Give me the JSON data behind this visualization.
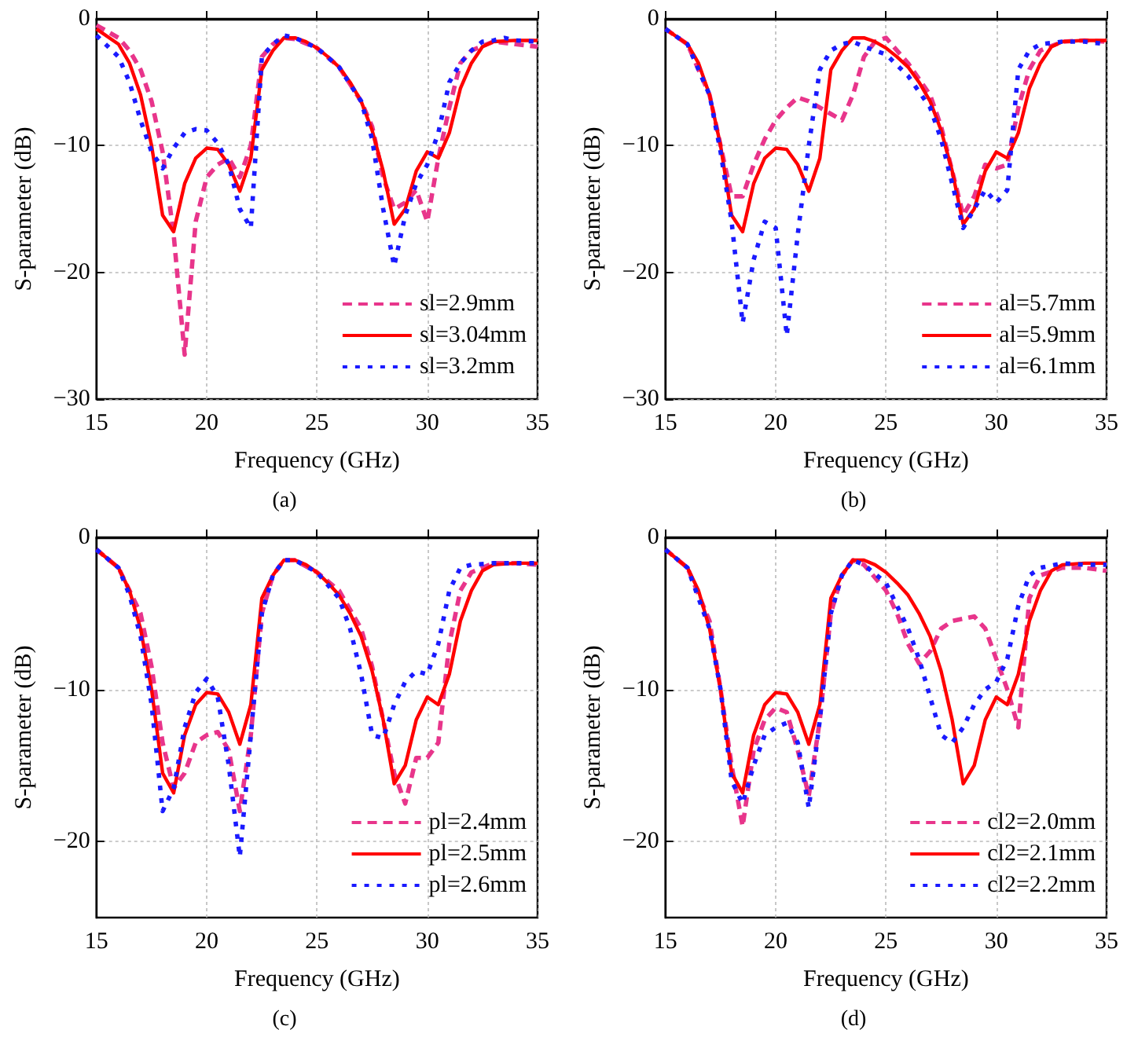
{
  "chart_data": [
    {
      "type": "line",
      "xlabel": "Frequency (GHz)",
      "ylabel": "S-parameter (dB)",
      "annotations": [
        "(a)"
      ],
      "xlim": [
        15,
        35
      ],
      "xticks": [
        15,
        20,
        25,
        30,
        35
      ],
      "ylim": [
        -30,
        0
      ],
      "yticks": [
        0,
        -10,
        -20,
        -30
      ],
      "grid": true,
      "legend": "bottom right",
      "marker": "none",
      "series": [
        {
          "name": "sl=2.9mm",
          "color": "#e8358b",
          "line_style": "dashed",
          "x": [
            15,
            16,
            16.5,
            17,
            17.5,
            18,
            18.5,
            19,
            19.5,
            20,
            20.5,
            21,
            21.5,
            22,
            22.5,
            23,
            23.5,
            24,
            25,
            26,
            27,
            27.5,
            28,
            28.5,
            29,
            29.5,
            30,
            30.5,
            31,
            31.5,
            32,
            33,
            34,
            35
          ],
          "values": [
            -0.5,
            -1.5,
            -2.5,
            -4,
            -6.5,
            -10.5,
            -17,
            -26.5,
            -16,
            -12.5,
            -11.5,
            -11,
            -12.5,
            -10,
            -3,
            -2,
            -1.5,
            -1.6,
            -2.3,
            -3.8,
            -6.5,
            -8.5,
            -12.5,
            -15,
            -14.5,
            -13.5,
            -16,
            -11,
            -7,
            -3.5,
            -2.5,
            -1.8,
            -2,
            -2.2
          ]
        },
        {
          "name": "sl=3.04mm",
          "color": "#ff0000",
          "line_style": "solid",
          "x": [
            15,
            16,
            16.5,
            17,
            17.5,
            18,
            18.5,
            19,
            19.5,
            20,
            20.5,
            21,
            21.5,
            22,
            22.5,
            23,
            23.5,
            24,
            24.5,
            25,
            25.5,
            26,
            26.5,
            27,
            27.5,
            28,
            28.5,
            29,
            29.5,
            30,
            30.5,
            31,
            31.5,
            32,
            32.5,
            33,
            34,
            35
          ],
          "values": [
            -0.8,
            -2,
            -3.5,
            -6,
            -10,
            -15.5,
            -16.8,
            -13,
            -11,
            -10.2,
            -10.3,
            -11.5,
            -13.6,
            -11,
            -4,
            -2.5,
            -1.5,
            -1.5,
            -1.8,
            -2.3,
            -3,
            -3.8,
            -5,
            -6.5,
            -8.8,
            -12,
            -16.2,
            -15,
            -12,
            -10.5,
            -11,
            -9,
            -5.5,
            -3.5,
            -2.2,
            -1.8,
            -1.7,
            -1.7
          ]
        },
        {
          "name": "sl=3.2mm",
          "color": "#1a1aff",
          "line_style": "dotted",
          "x": [
            15,
            16,
            16.5,
            17,
            17.5,
            18,
            18.5,
            19,
            19.5,
            20,
            20.5,
            21,
            21.5,
            22,
            22.5,
            23,
            23.5,
            24,
            25,
            26,
            27,
            27.5,
            28,
            28.5,
            29,
            29.5,
            30,
            30.5,
            31,
            31.5,
            32,
            32.5,
            33,
            33.5,
            34,
            35
          ],
          "values": [
            -1.3,
            -3,
            -5,
            -8,
            -10.5,
            -11.8,
            -10.2,
            -9,
            -8.7,
            -8.8,
            -9.8,
            -11.5,
            -15,
            -16.5,
            -3,
            -2,
            -1.3,
            -1.5,
            -2.3,
            -3.8,
            -6.5,
            -9.5,
            -15,
            -19.5,
            -15.5,
            -13,
            -11.5,
            -9,
            -5,
            -3.5,
            -2.5,
            -1.8,
            -1.7,
            -1.5,
            -1.7,
            -1.8
          ]
        }
      ]
    },
    {
      "type": "line",
      "xlabel": "Frequency (GHz)",
      "ylabel": "S-parameter (dB)",
      "annotations": [
        "(b)"
      ],
      "xlim": [
        15,
        35
      ],
      "xticks": [
        15,
        20,
        25,
        30,
        35
      ],
      "ylim": [
        -30,
        0
      ],
      "yticks": [
        0,
        -10,
        -20,
        -30
      ],
      "grid": true,
      "legend": "bottom right",
      "marker": "none",
      "series": [
        {
          "name": "al=5.7mm",
          "color": "#e8358b",
          "line_style": "dashed",
          "x": [
            15,
            16,
            17,
            17.5,
            18,
            18.5,
            19,
            19.5,
            20,
            20.5,
            21,
            21.5,
            22,
            22.5,
            23,
            23.5,
            24,
            24.5,
            25,
            25.5,
            26,
            27,
            27.5,
            28,
            28.5,
            29,
            29.5,
            30,
            30.5,
            31,
            31.5,
            32,
            33,
            34,
            35
          ],
          "values": [
            -0.8,
            -2,
            -6,
            -10,
            -14,
            -14,
            -11.5,
            -9.5,
            -8,
            -7,
            -6.2,
            -6.5,
            -7,
            -7.5,
            -8,
            -6,
            -3,
            -1.8,
            -1.5,
            -2.5,
            -3.5,
            -6,
            -8.5,
            -12,
            -15.5,
            -14,
            -11.5,
            -11.8,
            -11.5,
            -7,
            -4,
            -2.5,
            -1.8,
            -1.7,
            -1.8
          ]
        },
        {
          "name": "al=5.9mm",
          "color": "#ff0000",
          "line_style": "solid",
          "x": [
            15,
            16,
            16.5,
            17,
            17.5,
            18,
            18.5,
            19,
            19.5,
            20,
            20.5,
            21,
            21.5,
            22,
            22.5,
            23,
            23.5,
            24,
            24.5,
            25,
            25.5,
            26,
            26.5,
            27,
            27.5,
            28,
            28.5,
            29,
            29.5,
            30,
            30.5,
            31,
            31.5,
            32,
            32.5,
            33,
            34,
            35
          ],
          "values": [
            -0.8,
            -2,
            -3.5,
            -6,
            -10,
            -15.5,
            -16.8,
            -13,
            -11,
            -10.2,
            -10.3,
            -11.5,
            -13.6,
            -11,
            -4,
            -2.5,
            -1.5,
            -1.5,
            -1.8,
            -2.3,
            -3,
            -3.8,
            -5,
            -6.5,
            -8.8,
            -12,
            -16.2,
            -15,
            -12,
            -10.5,
            -11,
            -9,
            -5.5,
            -3.5,
            -2.2,
            -1.8,
            -1.7,
            -1.7
          ]
        },
        {
          "name": "al=6.1mm",
          "color": "#1a1aff",
          "line_style": "dotted",
          "x": [
            15,
            16,
            17,
            17.5,
            18,
            18.5,
            19,
            19.5,
            20,
            20.5,
            21,
            21.5,
            22,
            22.5,
            23,
            23.5,
            24,
            25,
            26,
            27,
            27.5,
            28,
            28.5,
            29,
            29.5,
            30,
            30.5,
            31,
            31.5,
            32,
            33,
            34,
            35
          ],
          "values": [
            -0.8,
            -2,
            -6,
            -10.5,
            -16,
            -24,
            -19,
            -16,
            -16.5,
            -25,
            -17,
            -10,
            -4,
            -2.5,
            -2,
            -1.8,
            -2.2,
            -2.8,
            -4.5,
            -7,
            -9.5,
            -13,
            -16.5,
            -15,
            -13.5,
            -14.5,
            -13.5,
            -4,
            -2.5,
            -2,
            -1.8,
            -1.8,
            -2
          ]
        }
      ]
    },
    {
      "type": "line",
      "xlabel": "Frequency (GHz)",
      "ylabel": "S-parameter (dB)",
      "annotations": [
        "(c)"
      ],
      "xlim": [
        15,
        35
      ],
      "xticks": [
        15,
        20,
        25,
        30,
        35
      ],
      "ylim": [
        -25,
        0
      ],
      "yticks": [
        0,
        -10,
        -20
      ],
      "grid": true,
      "legend": "bottom right",
      "marker": "none",
      "series": [
        {
          "name": "pl=2.4mm",
          "color": "#e8358b",
          "line_style": "dashed",
          "x": [
            15,
            16,
            17,
            17.5,
            18,
            18.5,
            19,
            19.5,
            20,
            20.5,
            21,
            21.5,
            22,
            22.5,
            23,
            23.5,
            24,
            25,
            26,
            27,
            27.5,
            28,
            28.5,
            29,
            29.5,
            30,
            30.5,
            31,
            31.5,
            32,
            33,
            34,
            35
          ],
          "values": [
            -0.8,
            -2,
            -5,
            -8.5,
            -13.5,
            -16.5,
            -15.5,
            -13.5,
            -13,
            -12.8,
            -14,
            -18,
            -13,
            -5,
            -2.5,
            -1.5,
            -1.5,
            -2.3,
            -3.5,
            -6,
            -8.5,
            -12,
            -15.5,
            -17.5,
            -14.5,
            -14.5,
            -13.5,
            -7,
            -3.5,
            -2.3,
            -1.7,
            -1.7,
            -1.8
          ]
        },
        {
          "name": "pl=2.5mm",
          "color": "#ff0000",
          "line_style": "solid",
          "x": [
            15,
            16,
            16.5,
            17,
            17.5,
            18,
            18.5,
            19,
            19.5,
            20,
            20.5,
            21,
            21.5,
            22,
            22.5,
            23,
            23.5,
            24,
            24.5,
            25,
            25.5,
            26,
            26.5,
            27,
            27.5,
            28,
            28.5,
            29,
            29.5,
            30,
            30.5,
            31,
            31.5,
            32,
            32.5,
            33,
            34,
            35
          ],
          "values": [
            -0.8,
            -2,
            -3.5,
            -6,
            -10,
            -15.5,
            -16.8,
            -13,
            -11,
            -10.2,
            -10.3,
            -11.5,
            -13.6,
            -11,
            -4,
            -2.5,
            -1.5,
            -1.5,
            -1.8,
            -2.3,
            -3,
            -3.8,
            -5,
            -6.5,
            -8.8,
            -12,
            -16.2,
            -15,
            -12,
            -10.5,
            -11,
            -9,
            -5.5,
            -3.5,
            -2.2,
            -1.8,
            -1.7,
            -1.7
          ]
        },
        {
          "name": "pl=2.6mm",
          "color": "#1a1aff",
          "line_style": "dotted",
          "x": [
            15,
            16,
            16.5,
            17,
            17.5,
            18,
            18.5,
            19,
            19.5,
            20,
            20.5,
            21,
            21.5,
            22,
            22.5,
            23,
            23.5,
            24,
            25,
            26,
            26.5,
            27,
            27.5,
            28,
            28.5,
            29,
            29.5,
            30,
            30.5,
            31,
            31.5,
            32,
            33,
            35
          ],
          "values": [
            -0.8,
            -2,
            -3.8,
            -6.5,
            -11,
            -18,
            -16.5,
            -12.5,
            -10.2,
            -9.3,
            -10.5,
            -15,
            -21,
            -13,
            -5,
            -2.5,
            -1.5,
            -1.5,
            -2.3,
            -4,
            -6,
            -9,
            -13,
            -13.2,
            -11,
            -9.5,
            -8.8,
            -9,
            -7,
            -3.5,
            -2,
            -1.8,
            -1.7,
            -1.7
          ]
        }
      ]
    },
    {
      "type": "line",
      "xlabel": "Frequency (GHz)",
      "ylabel": "S-parameter (dB)",
      "annotations": [
        "(d)"
      ],
      "xlim": [
        15,
        35
      ],
      "xticks": [
        15,
        20,
        25,
        30,
        35
      ],
      "ylim": [
        -25,
        0
      ],
      "yticks": [
        0,
        -10,
        -20
      ],
      "grid": true,
      "legend": "bottom right",
      "marker": "none",
      "series": [
        {
          "name": "cl2=2.0mm",
          "color": "#e8358b",
          "line_style": "dashed",
          "x": [
            15,
            16,
            17,
            17.5,
            18,
            18.5,
            19,
            19.5,
            20,
            20.5,
            21,
            21.5,
            22,
            22.5,
            23,
            23.5,
            24,
            25,
            25.5,
            26,
            26.5,
            27,
            27.5,
            28,
            29,
            29.5,
            30,
            30.5,
            31,
            31.5,
            32,
            33,
            34,
            35
          ],
          "values": [
            -0.8,
            -2,
            -5.5,
            -10,
            -15,
            -19,
            -14,
            -12,
            -11.2,
            -11.5,
            -14,
            -17,
            -12,
            -5,
            -2.5,
            -1.5,
            -1.8,
            -3.5,
            -5,
            -7,
            -8.3,
            -7.5,
            -6,
            -5.5,
            -5.2,
            -6,
            -8,
            -10,
            -12.5,
            -4,
            -2.5,
            -2,
            -2,
            -2.2
          ]
        },
        {
          "name": "cl2=2.1mm",
          "color": "#ff0000",
          "line_style": "solid",
          "x": [
            15,
            16,
            16.5,
            17,
            17.5,
            18,
            18.5,
            19,
            19.5,
            20,
            20.5,
            21,
            21.5,
            22,
            22.5,
            23,
            23.5,
            24,
            24.5,
            25,
            25.5,
            26,
            26.5,
            27,
            27.5,
            28,
            28.5,
            29,
            29.5,
            30,
            30.5,
            31,
            31.5,
            32,
            32.5,
            33,
            34,
            35
          ],
          "values": [
            -0.8,
            -2,
            -3.5,
            -6,
            -10,
            -15.5,
            -16.8,
            -13,
            -11,
            -10.2,
            -10.3,
            -11.5,
            -13.6,
            -11,
            -4,
            -2.5,
            -1.5,
            -1.5,
            -1.8,
            -2.3,
            -3,
            -3.8,
            -5,
            -6.5,
            -8.8,
            -12,
            -16.2,
            -15,
            -12,
            -10.5,
            -11,
            -9,
            -5.5,
            -3.5,
            -2.2,
            -1.8,
            -1.7,
            -1.7
          ]
        },
        {
          "name": "cl2=2.2mm",
          "color": "#1a1aff",
          "line_style": "dotted",
          "x": [
            15,
            16,
            17,
            17.5,
            18,
            18.5,
            19,
            19.5,
            20,
            20.5,
            21,
            21.5,
            22,
            22.5,
            23,
            23.5,
            24,
            25,
            25.5,
            26,
            26.5,
            27,
            27.5,
            28,
            28.5,
            29,
            29.5,
            30,
            30.5,
            31,
            31.5,
            32,
            33,
            34,
            35
          ],
          "values": [
            -0.8,
            -2,
            -6,
            -10,
            -16,
            -17.5,
            -15,
            -13,
            -12.5,
            -12.2,
            -13.5,
            -17.8,
            -12,
            -5,
            -2.5,
            -1.5,
            -1.8,
            -3,
            -4.5,
            -6,
            -8,
            -10.5,
            -13,
            -13.5,
            -12.5,
            -11,
            -10,
            -9.5,
            -8,
            -4.5,
            -2.5,
            -2,
            -1.7,
            -1.8,
            -1.8
          ]
        }
      ]
    }
  ]
}
